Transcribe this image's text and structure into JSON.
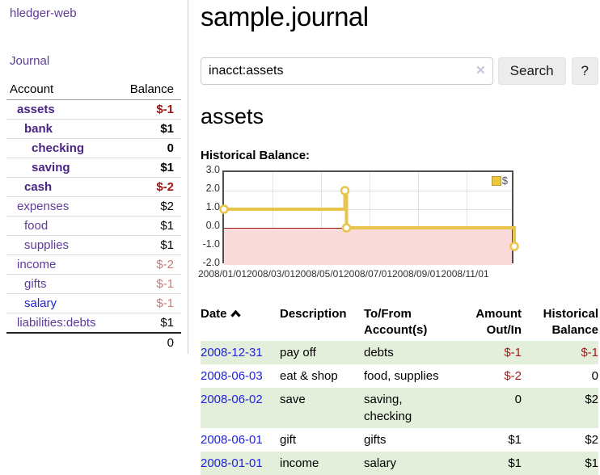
{
  "sidebar": {
    "brand": "hledger-web",
    "nav": {
      "journal": "Journal"
    },
    "accounts_table": {
      "headers": {
        "account": "Account",
        "balance": "Balance"
      },
      "rows": [
        {
          "name": "assets",
          "balance": "$-1"
        },
        {
          "name": "bank",
          "balance": "$1"
        },
        {
          "name": "checking",
          "balance": "0"
        },
        {
          "name": "saving",
          "balance": "$1"
        },
        {
          "name": "cash",
          "balance": "$-2"
        },
        {
          "name": "expenses",
          "balance": "$2"
        },
        {
          "name": "food",
          "balance": "$1"
        },
        {
          "name": "supplies",
          "balance": "$1"
        },
        {
          "name": "income",
          "balance": "$-2"
        },
        {
          "name": "gifts",
          "balance": "$-1"
        },
        {
          "name": "salary",
          "balance": "$-1"
        },
        {
          "name": "liabilities:debts",
          "balance": "$1"
        }
      ],
      "total": "0"
    }
  },
  "main": {
    "title": "sample.journal",
    "search": {
      "query": "inacct:assets",
      "clear_icon": "✕",
      "search_label": "Search",
      "help_label": "?"
    },
    "account_heading": "assets",
    "chart_label": "Historical Balance:",
    "transactions": {
      "headers": {
        "date": "Date",
        "description": "Description",
        "accounts": "To/From Account(s)",
        "amount": "Amount Out/In",
        "balance": "Historical Balance"
      },
      "rows": [
        {
          "date": "2008-12-31",
          "description": "pay off",
          "accounts": "debts",
          "amount": "$-1",
          "balance": "$-1"
        },
        {
          "date": "2008-06-03",
          "description": "eat & shop",
          "accounts": "food, supplies",
          "amount": "$-2",
          "balance": "0"
        },
        {
          "date": "2008-06-02",
          "description": "save",
          "accounts": "saving, checking",
          "amount": "0",
          "balance": "$2"
        },
        {
          "date": "2008-06-01",
          "description": "gift",
          "accounts": "gifts",
          "amount": "$1",
          "balance": "$2"
        },
        {
          "date": "2008-01-01",
          "description": "income",
          "accounts": "salary",
          "amount": "$1",
          "balance": "$1"
        }
      ]
    }
  },
  "chart_data": {
    "type": "line",
    "step": true,
    "title": "Historical Balance:",
    "series": [
      {
        "name": "$",
        "color": "#eac54d",
        "points": [
          [
            "2008-01-01",
            1
          ],
          [
            "2008-06-01",
            2
          ],
          [
            "2008-06-03",
            0
          ],
          [
            "2008-12-31",
            -1
          ]
        ]
      }
    ],
    "x_domain": [
      "2008-01-01",
      "2009-01-01"
    ],
    "ylim": [
      -2,
      3
    ],
    "yticks": [
      "3.0",
      "2.0",
      "1.0",
      "0.0",
      "-1.0",
      "-2.0"
    ],
    "xticks": [
      "2008/01/01",
      "2008/03/01",
      "2008/05/01",
      "2008/07/01",
      "2008/09/01",
      "2008/11/01"
    ],
    "grid": true,
    "legend_position": "top-right",
    "negative_region_color": "#fbdada",
    "zero_line_color": "#991111"
  }
}
